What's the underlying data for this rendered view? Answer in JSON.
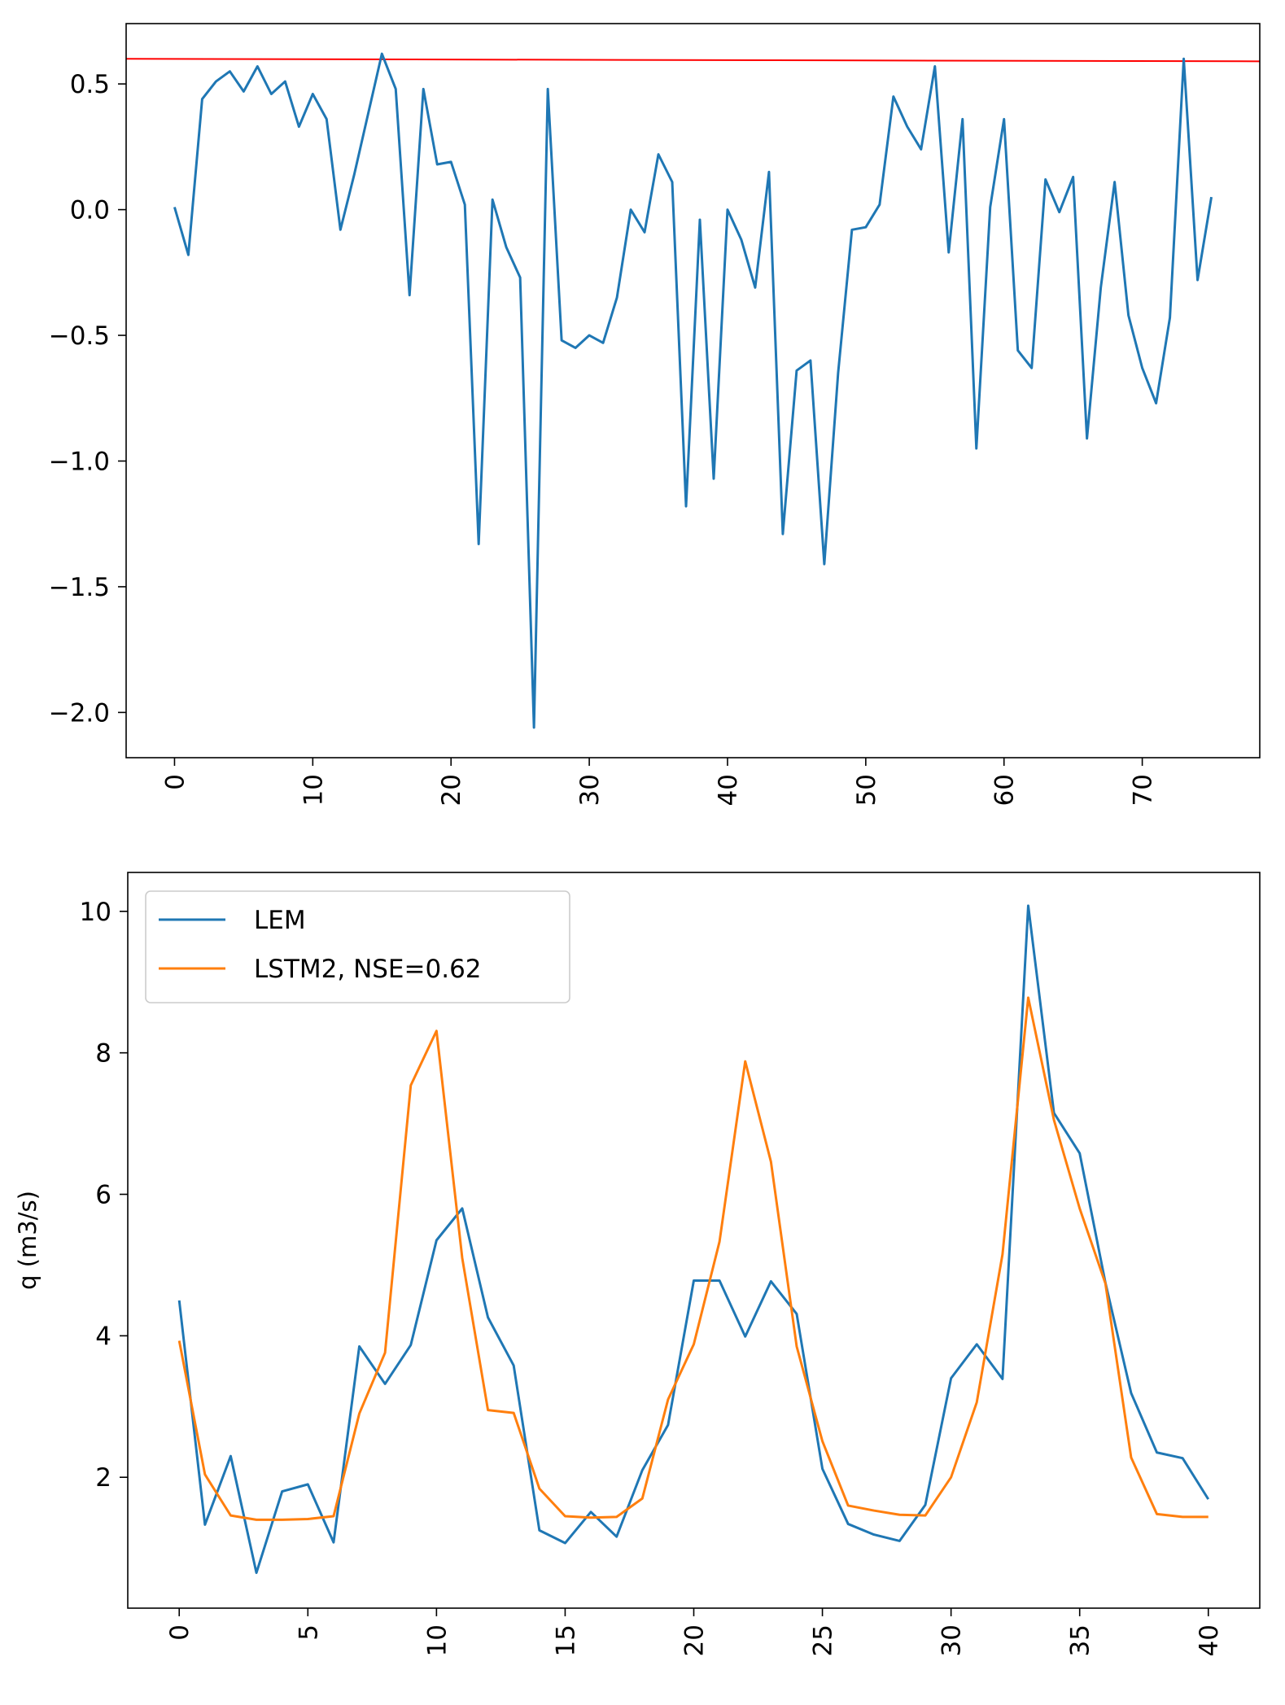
{
  "chart_data": [
    {
      "type": "line",
      "title": "",
      "xlabel": "",
      "ylabel": "",
      "xlim": [
        -3.5,
        78.5
      ],
      "ylim": [
        -2.18,
        0.74
      ],
      "xticks": [
        0,
        10,
        20,
        30,
        40,
        50,
        60,
        70
      ],
      "yticks": [
        0.5,
        0.0,
        -0.5,
        -1.0,
        -1.5,
        -2.0
      ],
      "ytick_labels": [
        "0.5",
        "0.0",
        "−0.5",
        "−1.0",
        "−1.5",
        "−2.0"
      ],
      "xtick_rotation": "vertical",
      "grid": false,
      "legend": "none",
      "series": [
        {
          "color": "#1f77b4",
          "x": [
            0,
            1,
            2,
            3,
            4,
            5,
            6,
            7,
            8,
            9,
            10,
            11,
            12,
            13,
            14,
            15,
            16,
            17,
            18,
            19,
            20,
            21,
            22,
            23,
            24,
            25,
            26,
            27,
            28,
            29,
            30,
            31,
            32,
            33,
            34,
            35,
            36,
            37,
            38,
            39,
            40,
            41,
            42,
            43,
            44,
            45,
            46,
            47,
            48,
            49,
            50,
            51,
            52,
            53,
            54,
            55,
            56,
            57,
            58,
            59,
            60,
            61,
            62,
            63,
            64,
            65,
            66,
            67,
            68,
            69,
            70,
            71,
            72,
            73,
            74,
            75
          ],
          "values": [
            0.01,
            -0.18,
            0.44,
            0.51,
            0.55,
            0.47,
            0.57,
            0.46,
            0.51,
            0.33,
            0.46,
            0.36,
            -0.08,
            0.14,
            0.38,
            0.62,
            0.48,
            -0.34,
            0.48,
            0.18,
            0.19,
            0.02,
            -1.33,
            0.04,
            -0.15,
            -0.27,
            -2.06,
            0.48,
            -0.52,
            -0.55,
            -0.5,
            -0.53,
            -0.35,
            0.0,
            -0.09,
            0.22,
            0.11,
            -1.18,
            -0.04,
            -1.07,
            0.0,
            -0.12,
            -0.31,
            0.15,
            -1.29,
            -0.64,
            -0.6,
            -1.41,
            -0.65,
            -0.08,
            -0.07,
            0.02,
            0.45,
            0.33,
            0.24,
            0.57,
            -0.17,
            0.36,
            -0.95,
            0.01,
            0.36,
            -0.56,
            -0.63,
            0.12,
            -0.01,
            0.13,
            -0.91,
            -0.31,
            0.11,
            -0.42,
            -0.63,
            -0.77,
            -0.43,
            0.6,
            -0.28,
            0.05
          ]
        }
      ],
      "hline": {
        "y": 0.6,
        "y_end": 0.59,
        "color": "#ff0000"
      }
    },
    {
      "type": "line",
      "title": "",
      "xlabel": "",
      "ylabel": "q (m3/s)",
      "xlim": [
        -2.0,
        42.0
      ],
      "ylim": [
        0.15,
        10.55
      ],
      "xticks": [
        0,
        5,
        10,
        15,
        20,
        25,
        30,
        35,
        40
      ],
      "yticks": [
        2,
        4,
        6,
        8,
        10
      ],
      "ytick_labels": [
        "2",
        "4",
        "6",
        "8",
        "10"
      ],
      "xtick_rotation": "vertical",
      "grid": false,
      "legend": "top-left",
      "series": [
        {
          "name": "LEM",
          "color": "#1f77b4",
          "x": [
            0,
            1,
            2,
            3,
            4,
            5,
            6,
            7,
            8,
            9,
            10,
            11,
            12,
            13,
            14,
            15,
            16,
            17,
            18,
            19,
            20,
            21,
            22,
            23,
            24,
            25,
            26,
            27,
            28,
            29,
            30,
            31,
            32,
            33,
            34,
            35,
            36,
            37,
            38,
            39,
            40
          ],
          "values": [
            4.5,
            1.33,
            2.3,
            0.65,
            1.8,
            1.9,
            1.08,
            3.85,
            3.32,
            3.87,
            5.35,
            5.8,
            4.26,
            3.58,
            1.25,
            1.07,
            1.51,
            1.16,
            2.1,
            2.74,
            4.78,
            4.78,
            3.99,
            4.77,
            4.31,
            2.12,
            1.34,
            1.19,
            1.1,
            1.61,
            3.4,
            3.88,
            3.39,
            10.08,
            7.15,
            6.58,
            4.75,
            3.19,
            2.35,
            2.27,
            1.69
          ]
        },
        {
          "name": "LSTM2, NSE=0.62",
          "color": "#ff7f0e",
          "x": [
            0,
            1,
            2,
            3,
            4,
            5,
            6,
            7,
            8,
            9,
            10,
            11,
            12,
            13,
            14,
            15,
            16,
            17,
            18,
            19,
            20,
            21,
            22,
            23,
            24,
            25,
            26,
            27,
            28,
            29,
            30,
            31,
            32,
            33,
            34,
            35,
            36,
            37,
            38,
            39,
            40
          ],
          "values": [
            3.93,
            2.04,
            1.46,
            1.4,
            1.4,
            1.41,
            1.45,
            2.9,
            3.76,
            7.54,
            8.31,
            5.1,
            2.95,
            2.91,
            1.84,
            1.45,
            1.43,
            1.44,
            1.7,
            3.1,
            3.88,
            5.33,
            7.88,
            6.46,
            3.85,
            2.51,
            1.6,
            1.53,
            1.47,
            1.46,
            2.0,
            3.06,
            5.15,
            8.78,
            7.05,
            5.8,
            4.74,
            2.28,
            1.48,
            1.44,
            1.44
          ]
        }
      ]
    }
  ]
}
